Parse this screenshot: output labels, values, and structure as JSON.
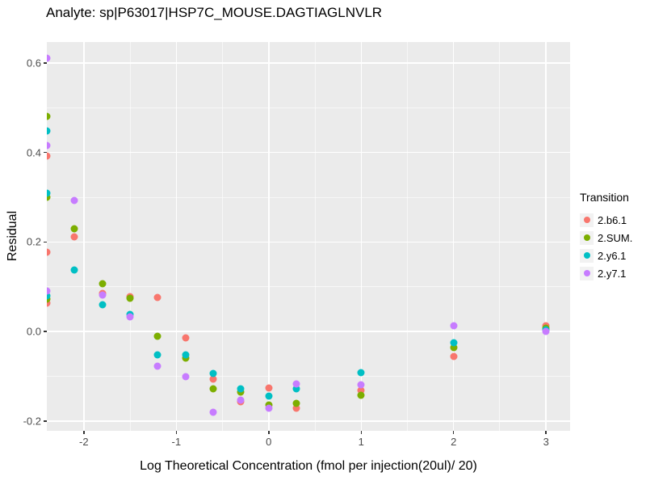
{
  "header": {
    "title": "Analyte: sp|P63017|HSP7C_MOUSE.DAGTIAGLNVLR"
  },
  "chart_data": {
    "type": "scatter",
    "title": "Analyte: sp|P63017|HSP7C_MOUSE.DAGTIAGLNVLR",
    "xlabel": "Log Theoretical Concentration (fmol per injection(20ul)/ 20)",
    "ylabel": "Residual",
    "xlim": [
      -2.4,
      3.26
    ],
    "ylim": [
      -0.222,
      0.647
    ],
    "grid": true,
    "panel_bg": "#EBEBEB",
    "gridline_color": "#FFFFFF",
    "x_major_ticks": [
      -2,
      -1,
      0,
      1,
      2,
      3
    ],
    "x_tick_labels": [
      "-2",
      "-1",
      "0",
      "1",
      "2",
      "3"
    ],
    "x_minor_ticks": [
      -1.5,
      -0.5,
      0.5,
      1.5,
      2.5
    ],
    "y_major_ticks": [
      -0.2,
      0.0,
      0.2,
      0.4,
      0.6
    ],
    "y_tick_labels": [
      "-0.2",
      "0.0",
      "0.2",
      "0.4",
      "0.6"
    ],
    "y_minor_ticks": [
      -0.1,
      0.1,
      0.3,
      0.5
    ],
    "legend_title": "Transition",
    "legend_position": "right",
    "series": [
      {
        "name": "2.b6.1",
        "color": "#F8766D",
        "points": [
          [
            -2.4,
            0.392
          ],
          [
            -2.4,
            0.177
          ],
          [
            -2.4,
            0.064
          ],
          [
            -2.1,
            0.211
          ],
          [
            -1.8,
            0.086
          ],
          [
            -1.5,
            0.078
          ],
          [
            -1.2,
            0.077
          ],
          [
            -0.9,
            -0.014
          ],
          [
            -0.6,
            -0.107
          ],
          [
            -0.3,
            -0.157
          ],
          [
            0,
            -0.127
          ],
          [
            0.3,
            -0.171
          ],
          [
            1,
            -0.131
          ],
          [
            2,
            -0.056
          ],
          [
            3,
            0.012
          ]
        ]
      },
      {
        "name": "2.SUM.",
        "color": "#7CAE00",
        "points": [
          [
            -2.4,
            0.48
          ],
          [
            -2.4,
            0.301
          ],
          [
            -2.4,
            0.072
          ],
          [
            -2.1,
            0.23
          ],
          [
            -1.8,
            0.107
          ],
          [
            -1.5,
            0.074
          ],
          [
            -1.2,
            -0.011
          ],
          [
            -0.9,
            -0.059
          ],
          [
            -0.6,
            -0.128
          ],
          [
            -0.3,
            -0.136
          ],
          [
            0,
            -0.165
          ],
          [
            0.3,
            -0.16
          ],
          [
            1,
            -0.143
          ],
          [
            2,
            -0.036
          ],
          [
            3,
            0.007
          ]
        ]
      },
      {
        "name": "2.y6.1",
        "color": "#00BFC4",
        "points": [
          [
            -2.4,
            0.449
          ],
          [
            -2.4,
            0.309
          ],
          [
            -2.4,
            0.079
          ],
          [
            -2.1,
            0.137
          ],
          [
            -1.8,
            0.06
          ],
          [
            -1.5,
            0.039
          ],
          [
            -1.2,
            -0.053
          ],
          [
            -0.9,
            -0.053
          ],
          [
            -0.6,
            -0.093
          ],
          [
            -0.3,
            -0.128
          ],
          [
            0,
            -0.145
          ],
          [
            0.3,
            -0.128
          ],
          [
            1,
            -0.092
          ],
          [
            2,
            -0.025
          ],
          [
            3,
            0.004
          ]
        ]
      },
      {
        "name": "2.y7.1",
        "color": "#C77CFF",
        "points": [
          [
            -2.4,
            0.61
          ],
          [
            -2.4,
            0.416
          ],
          [
            -2.4,
            0.091
          ],
          [
            -2.1,
            0.292
          ],
          [
            -1.8,
            0.081
          ],
          [
            -1.5,
            0.033
          ],
          [
            -1.2,
            -0.077
          ],
          [
            -0.9,
            -0.101
          ],
          [
            -0.6,
            -0.181
          ],
          [
            -0.3,
            -0.154
          ],
          [
            0,
            -0.171
          ],
          [
            0.3,
            -0.118
          ],
          [
            1,
            -0.119
          ],
          [
            2,
            0.013
          ],
          [
            3,
            0.0
          ]
        ]
      }
    ]
  }
}
